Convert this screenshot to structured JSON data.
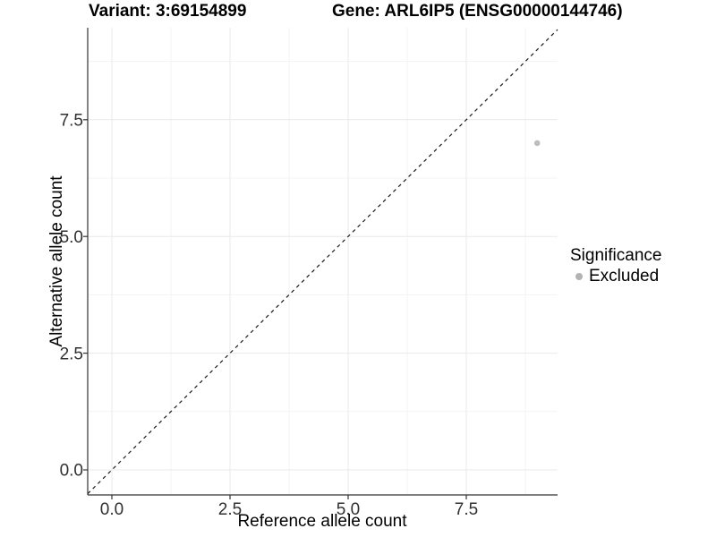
{
  "header": {
    "variant_title": "Variant: 3:69154899",
    "gene_title": "Gene: ARL6IP5 (ENSG00000144746)"
  },
  "chart_data": {
    "type": "scatter",
    "xlabel": "Reference allele count",
    "ylabel": "Alternative allele count",
    "xlim": [
      -0.51,
      9.43
    ],
    "ylim": [
      -0.54,
      9.5
    ],
    "x_ticks": [
      0,
      2.5,
      5,
      7.5
    ],
    "x_tick_labels": [
      "0.0",
      "2.5",
      "5.0",
      "7.5"
    ],
    "y_ticks": [
      0,
      2.5,
      5,
      7.5
    ],
    "y_tick_labels": [
      "0.0",
      "2.5",
      "5.0",
      "7.5"
    ],
    "grid": {
      "major": true,
      "minor": true
    },
    "reference_line": {
      "kind": "identity",
      "slope": 1,
      "intercept": 0,
      "style": "dashed",
      "color": "#1a1a1a"
    },
    "series": [
      {
        "name": "Excluded",
        "color": "#bdbdbd",
        "points": [
          {
            "x": 9,
            "y": 7
          }
        ]
      }
    ],
    "legend": {
      "position": "right",
      "title": "Significance",
      "entries": [
        {
          "label": "Excluded",
          "color": "#b3b3b3"
        }
      ]
    }
  },
  "colors": {
    "grid_major": "#e9e9e9",
    "grid_minor": "#f3f3f3",
    "axis_line": "#333333",
    "tick_text": "#303030"
  }
}
